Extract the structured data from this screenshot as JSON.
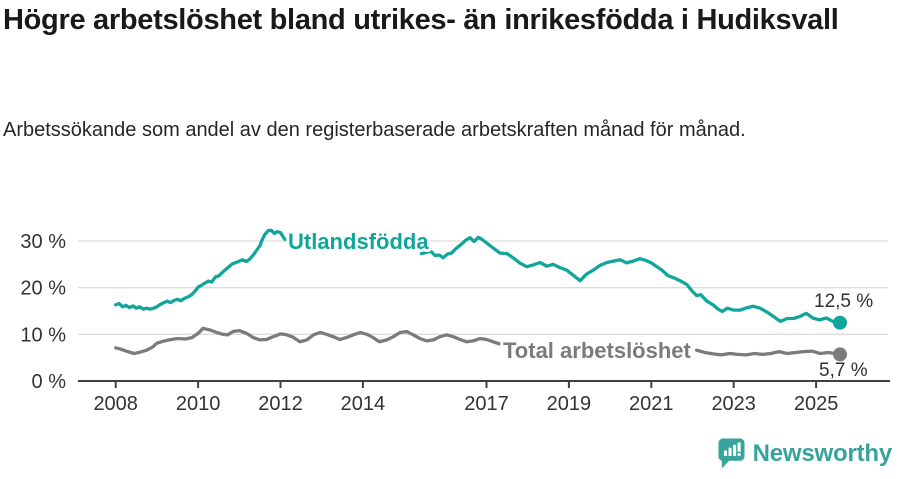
{
  "header": {
    "title": "Högre arbetslöshet bland utrikes- än inrikesfödda i Hudiksvall",
    "subtitle": "Arbetssökande som andel av den registerbaserade arbetskraften månad för månad."
  },
  "chart_data": {
    "type": "line",
    "title": "Högre arbetslöshet bland utrikes- än inrikesfödda i Hudiksvall",
    "subtitle": "Arbetssökande som andel av den registerbaserade arbetskraften månad för månad.",
    "unit": "%",
    "grid": true,
    "legend_position": "inline-labels-on-lines",
    "x_axis": {
      "range": [
        2007.9,
        2026.3
      ],
      "ticks": [
        {
          "value": 2008,
          "label": "2008"
        },
        {
          "value": 2010,
          "label": "2010"
        },
        {
          "value": 2012,
          "label": "2012"
        },
        {
          "value": 2014,
          "label": "2014"
        },
        {
          "value": 2017,
          "label": "2017"
        },
        {
          "value": 2019,
          "label": "2019"
        },
        {
          "value": 2021,
          "label": "2021"
        },
        {
          "value": 2023,
          "label": "2023"
        },
        {
          "value": 2025,
          "label": "2025"
        }
      ]
    },
    "y_axis": {
      "range": [
        0,
        33
      ],
      "ticks": [
        {
          "value": 30,
          "label": "30 %"
        },
        {
          "value": 20,
          "label": "20 %"
        },
        {
          "value": 10,
          "label": "10 %"
        },
        {
          "value": 0,
          "label": "0 %"
        }
      ]
    },
    "series": [
      {
        "name": "Utlandsfödda",
        "color": "#11a59b",
        "end_value": 12.5,
        "end_label": "12,5 %",
        "segments": [
          [
            [
              2008.0,
              16.3
            ],
            [
              2008.08,
              16.6
            ],
            [
              2008.17,
              15.9
            ],
            [
              2008.25,
              16.2
            ],
            [
              2008.33,
              15.7
            ],
            [
              2008.42,
              16.1
            ],
            [
              2008.5,
              15.6
            ],
            [
              2008.58,
              15.9
            ],
            [
              2008.67,
              15.4
            ],
            [
              2008.75,
              15.6
            ],
            [
              2008.83,
              15.4
            ],
            [
              2008.92,
              15.6
            ],
            [
              2009.0,
              15.9
            ],
            [
              2009.08,
              16.4
            ],
            [
              2009.17,
              16.8
            ],
            [
              2009.25,
              17.1
            ],
            [
              2009.33,
              16.8
            ],
            [
              2009.42,
              17.3
            ],
            [
              2009.5,
              17.5
            ],
            [
              2009.58,
              17.2
            ],
            [
              2009.67,
              17.7
            ],
            [
              2009.75,
              18.0
            ],
            [
              2009.83,
              18.4
            ],
            [
              2009.92,
              19.2
            ],
            [
              2010.0,
              20.1
            ],
            [
              2010.08,
              20.5
            ],
            [
              2010.17,
              21.0
            ],
            [
              2010.25,
              21.4
            ],
            [
              2010.33,
              21.2
            ],
            [
              2010.42,
              22.3
            ],
            [
              2010.5,
              22.5
            ],
            [
              2010.58,
              23.2
            ],
            [
              2010.67,
              23.9
            ],
            [
              2010.75,
              24.5
            ],
            [
              2010.83,
              25.1
            ],
            [
              2010.92,
              25.4
            ],
            [
              2011.0,
              25.7
            ],
            [
              2011.08,
              26.0
            ],
            [
              2011.17,
              25.6
            ],
            [
              2011.25,
              26.1
            ],
            [
              2011.33,
              26.9
            ],
            [
              2011.42,
              28.0
            ],
            [
              2011.5,
              29.0
            ],
            [
              2011.55,
              30.2
            ],
            [
              2011.62,
              31.4
            ],
            [
              2011.7,
              32.2
            ],
            [
              2011.78,
              32.3
            ],
            [
              2011.85,
              31.6
            ],
            [
              2011.92,
              32.0
            ],
            [
              2012.0,
              31.8
            ],
            [
              2012.1,
              30.4
            ],
            [
              2012.2,
              30.1
            ]
          ],
          [
            [
              2015.42,
              27.3
            ],
            [
              2015.55,
              27.6
            ],
            [
              2015.65,
              27.8
            ],
            [
              2015.75,
              26.9
            ],
            [
              2015.85,
              27.0
            ],
            [
              2015.95,
              26.4
            ],
            [
              2016.05,
              27.2
            ],
            [
              2016.15,
              27.4
            ],
            [
              2016.25,
              28.3
            ],
            [
              2016.4,
              29.4
            ],
            [
              2016.5,
              30.2
            ],
            [
              2016.6,
              30.7
            ],
            [
              2016.7,
              29.9
            ],
            [
              2016.8,
              30.8
            ],
            [
              2016.9,
              30.3
            ],
            [
              2017.0,
              29.6
            ],
            [
              2017.16,
              28.5
            ],
            [
              2017.33,
              27.4
            ],
            [
              2017.5,
              27.3
            ],
            [
              2017.66,
              26.3
            ],
            [
              2017.82,
              25.2
            ],
            [
              2017.98,
              24.5
            ],
            [
              2018.14,
              24.9
            ],
            [
              2018.3,
              25.4
            ],
            [
              2018.46,
              24.6
            ],
            [
              2018.62,
              25.0
            ],
            [
              2018.78,
              24.3
            ],
            [
              2018.94,
              23.8
            ],
            [
              2019.1,
              22.7
            ],
            [
              2019.27,
              21.5
            ],
            [
              2019.43,
              22.9
            ],
            [
              2019.6,
              23.8
            ],
            [
              2019.76,
              24.8
            ],
            [
              2019.92,
              25.4
            ],
            [
              2020.08,
              25.7
            ],
            [
              2020.24,
              26.0
            ],
            [
              2020.4,
              25.3
            ],
            [
              2020.56,
              25.7
            ],
            [
              2020.72,
              26.2
            ],
            [
              2020.88,
              25.8
            ],
            [
              2021.0,
              25.3
            ],
            [
              2021.12,
              24.6
            ],
            [
              2021.25,
              23.8
            ],
            [
              2021.4,
              22.6
            ],
            [
              2021.55,
              22.1
            ],
            [
              2021.7,
              21.5
            ],
            [
              2021.86,
              20.7
            ],
            [
              2022.0,
              19.2
            ],
            [
              2022.1,
              18.3
            ],
            [
              2022.2,
              18.5
            ],
            [
              2022.35,
              17.1
            ],
            [
              2022.5,
              16.3
            ],
            [
              2022.62,
              15.4
            ],
            [
              2022.72,
              14.9
            ],
            [
              2022.85,
              15.6
            ],
            [
              2023.0,
              15.2
            ],
            [
              2023.16,
              15.2
            ],
            [
              2023.32,
              15.7
            ],
            [
              2023.48,
              16.0
            ],
            [
              2023.64,
              15.6
            ],
            [
              2023.8,
              14.8
            ],
            [
              2023.97,
              13.8
            ],
            [
              2024.13,
              12.8
            ],
            [
              2024.3,
              13.4
            ],
            [
              2024.45,
              13.4
            ],
            [
              2024.6,
              13.8
            ],
            [
              2024.76,
              14.5
            ],
            [
              2024.92,
              13.5
            ],
            [
              2025.08,
              13.1
            ],
            [
              2025.25,
              13.5
            ],
            [
              2025.42,
              12.7
            ],
            [
              2025.58,
              12.5
            ]
          ]
        ]
      },
      {
        "name": "Total arbetslöshet",
        "color": "#7b7b7b",
        "end_value": 5.7,
        "end_label": "5,7 %",
        "segments": [
          [
            [
              2008.0,
              7.1
            ],
            [
              2008.1,
              6.9
            ],
            [
              2008.25,
              6.4
            ],
            [
              2008.45,
              5.9
            ],
            [
              2008.6,
              6.2
            ],
            [
              2008.75,
              6.6
            ],
            [
              2008.9,
              7.3
            ],
            [
              2009.0,
              8.1
            ],
            [
              2009.15,
              8.5
            ],
            [
              2009.3,
              8.8
            ],
            [
              2009.5,
              9.1
            ],
            [
              2009.7,
              9.0
            ],
            [
              2009.85,
              9.3
            ],
            [
              2010.0,
              10.2
            ],
            [
              2010.12,
              11.3
            ],
            [
              2010.3,
              10.9
            ],
            [
              2010.45,
              10.4
            ],
            [
              2010.6,
              10.0
            ],
            [
              2010.72,
              9.9
            ],
            [
              2010.85,
              10.6
            ],
            [
              2011.0,
              10.8
            ],
            [
              2011.18,
              10.2
            ],
            [
              2011.34,
              9.3
            ],
            [
              2011.5,
              8.8
            ],
            [
              2011.66,
              8.9
            ],
            [
              2011.82,
              9.5
            ],
            [
              2012.0,
              10.1
            ],
            [
              2012.15,
              9.9
            ],
            [
              2012.3,
              9.4
            ],
            [
              2012.47,
              8.4
            ],
            [
              2012.64,
              8.8
            ],
            [
              2012.8,
              9.9
            ],
            [
              2012.96,
              10.4
            ],
            [
              2013.12,
              10.0
            ],
            [
              2013.28,
              9.5
            ],
            [
              2013.44,
              8.9
            ],
            [
              2013.6,
              9.3
            ],
            [
              2013.77,
              9.9
            ],
            [
              2013.93,
              10.4
            ],
            [
              2014.1,
              10.0
            ],
            [
              2014.25,
              9.3
            ],
            [
              2014.4,
              8.4
            ],
            [
              2014.58,
              8.8
            ],
            [
              2014.74,
              9.5
            ],
            [
              2014.9,
              10.4
            ],
            [
              2015.06,
              10.6
            ],
            [
              2015.22,
              9.9
            ],
            [
              2015.38,
              9.1
            ],
            [
              2015.55,
              8.6
            ],
            [
              2015.71,
              8.8
            ],
            [
              2015.87,
              9.5
            ],
            [
              2016.03,
              9.9
            ],
            [
              2016.19,
              9.5
            ],
            [
              2016.36,
              8.9
            ],
            [
              2016.52,
              8.4
            ],
            [
              2016.68,
              8.6
            ],
            [
              2016.84,
              9.1
            ],
            [
              2017.0,
              8.9
            ],
            [
              2017.16,
              8.4
            ],
            [
              2017.33,
              7.9
            ]
          ],
          [
            [
              2022.1,
              6.6
            ],
            [
              2022.3,
              6.1
            ],
            [
              2022.5,
              5.8
            ],
            [
              2022.7,
              5.6
            ],
            [
              2022.9,
              5.9
            ],
            [
              2023.1,
              5.7
            ],
            [
              2023.3,
              5.6
            ],
            [
              2023.5,
              5.9
            ],
            [
              2023.7,
              5.7
            ],
            [
              2023.9,
              5.9
            ],
            [
              2024.1,
              6.3
            ],
            [
              2024.3,
              5.9
            ],
            [
              2024.5,
              6.1
            ],
            [
              2024.7,
              6.3
            ],
            [
              2024.9,
              6.4
            ],
            [
              2025.1,
              5.9
            ],
            [
              2025.3,
              6.1
            ],
            [
              2025.58,
              5.7
            ]
          ]
        ]
      }
    ]
  },
  "footer": {
    "brand": "Newsworthy",
    "icon": "speech-bubble-bar-chart-icon"
  }
}
